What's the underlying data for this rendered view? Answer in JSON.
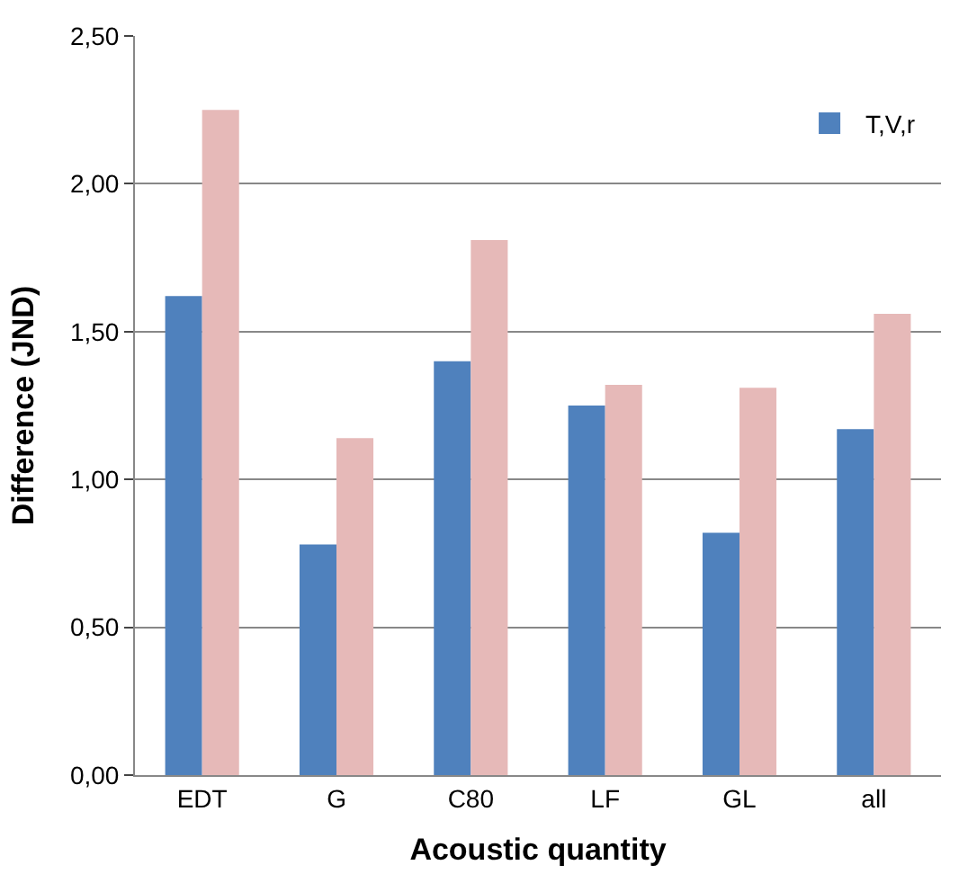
{
  "chart_data": {
    "type": "bar",
    "categories": [
      "EDT",
      "G",
      "C80",
      "LF",
      "GL",
      "all"
    ],
    "series": [
      {
        "name": "T,V,r",
        "color": "#4f81bd",
        "values": [
          1.62,
          0.78,
          1.4,
          1.25,
          0.82,
          1.17
        ]
      },
      {
        "color": "#e6b9b8",
        "values": [
          2.25,
          1.14,
          1.81,
          1.32,
          1.31,
          1.56
        ]
      }
    ],
    "xlabel": "Acoustic quantity",
    "ylabel": "Difference (JND)",
    "ylim": [
      0,
      2.5
    ],
    "yticks": [
      {
        "value": 0,
        "label": "0,00"
      },
      {
        "value": 0.5,
        "label": "0,50"
      },
      {
        "value": 1,
        "label": "1,00"
      },
      {
        "value": 1.5,
        "label": "1,50"
      },
      {
        "value": 2,
        "label": "2,00"
      },
      {
        "value": 2.5,
        "label": "2,50"
      }
    ],
    "grid": "y",
    "legend": "top right"
  }
}
